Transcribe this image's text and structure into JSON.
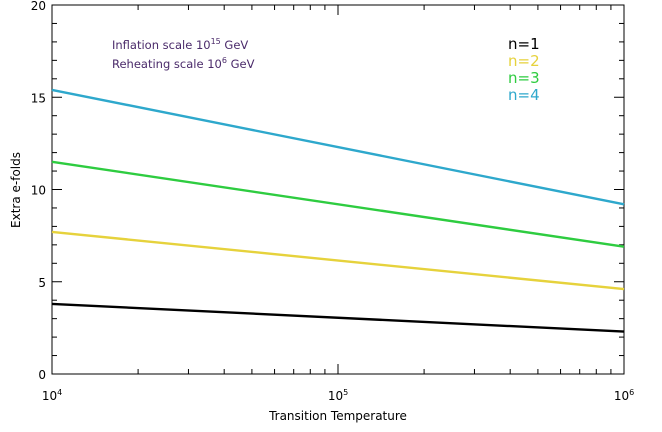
{
  "chart_data": {
    "type": "line",
    "xscale": "log",
    "xlim": [
      10000,
      1000000
    ],
    "ylim": [
      0,
      20
    ],
    "xlabel": "Transition Temperature",
    "ylabel": "Extra e-folds",
    "x_ticks_major": [
      {
        "base": "10",
        "exp": "4",
        "value": 10000
      },
      {
        "base": "10",
        "exp": "5",
        "value": 100000
      },
      {
        "base": "10",
        "exp": "6",
        "value": 1000000
      }
    ],
    "y_ticks_major": [
      0,
      5,
      10,
      15,
      20
    ],
    "series": [
      {
        "name": "n=1",
        "color": "#000000",
        "x": [
          10000,
          1000000
        ],
        "y": [
          3.8,
          2.3
        ]
      },
      {
        "name": "n=2",
        "color": "#e6d23c",
        "x": [
          10000,
          1000000
        ],
        "y": [
          7.7,
          4.6
        ]
      },
      {
        "name": "n=3",
        "color": "#2ecc40",
        "x": [
          10000,
          1000000
        ],
        "y": [
          11.5,
          6.9
        ]
      },
      {
        "name": "n=4",
        "color": "#2ea8cc",
        "x": [
          10000,
          1000000
        ],
        "y": [
          15.4,
          9.2
        ]
      }
    ],
    "annotations": [
      {
        "text": "Inflation scale 10",
        "sup": "15",
        "suffix": " GeV"
      },
      {
        "text": "Reheating scale 10",
        "sup": "6",
        "suffix": " GeV"
      }
    ],
    "legend_position": "top-right",
    "grid": false
  }
}
